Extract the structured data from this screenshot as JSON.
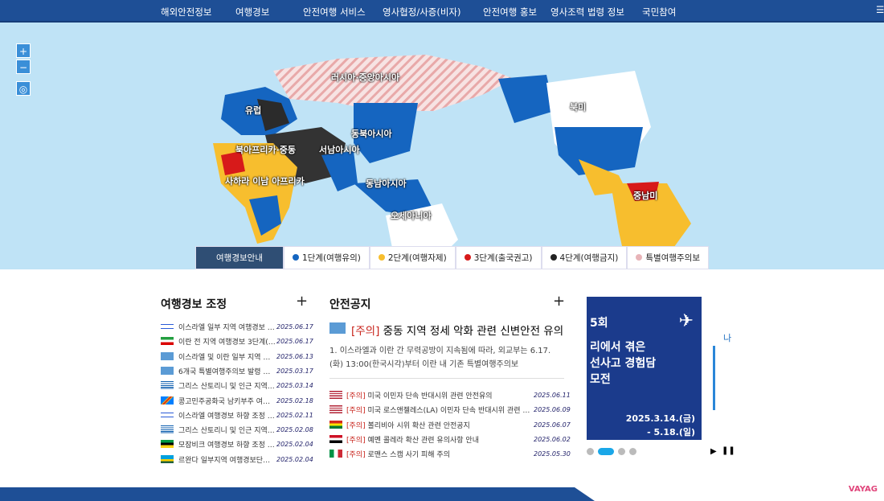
{
  "nav": {
    "items": [
      "해외안전정보",
      "여행경보",
      "안전여행 서비스",
      "영사협정/사증(비자)",
      "안전여행 홍보",
      "영사조력 법령 정보",
      "국민참여"
    ],
    "menu_icon": "hamburger-icon"
  },
  "map": {
    "zoom_in": "+",
    "zoom_out": "−",
    "reset_icon": "target-icon",
    "regions": [
      "러시아·중앙아시아",
      "유럽",
      "북미",
      "동북아시아",
      "북아프리카·중동",
      "서남아시아",
      "사하라 이남 아프리카",
      "동남아시아",
      "중남미",
      "오세아니아"
    ]
  },
  "legend": {
    "title": "여행경보안내",
    "levels": [
      {
        "label": "1단계(여행유의)",
        "color": "#1565c0"
      },
      {
        "label": "2단계(여행자제)",
        "color": "#f7be2e"
      },
      {
        "label": "3단계(출국권고)",
        "color": "#d71a1a"
      },
      {
        "label": "4단계(여행금지)",
        "color": "#222222"
      },
      {
        "label": "특별여행주의보",
        "color": "#e8b4b8"
      }
    ]
  },
  "alerts": {
    "title": "여행경보 조정",
    "more": "+",
    "items": [
      {
        "text": "이스라엘 일부 지역 여행경보 …",
        "date": "2025.06.17",
        "flag": "israel"
      },
      {
        "text": "이란 전 지역 여행경보 3단계(…",
        "date": "2025.06.17",
        "flag": "iran"
      },
      {
        "text": "이스라엘 및 이란 일부 지역 …",
        "date": "2025.06.13",
        "flag": "un"
      },
      {
        "text": "6개국 특별여행주의보 발령 …",
        "date": "2025.03.17",
        "flag": "un"
      },
      {
        "text": "그리스 산토리니 및 인근 지역…",
        "date": "2025.03.14",
        "flag": "greece"
      },
      {
        "text": "콩고민주공화국 남키부주 여…",
        "date": "2025.02.18",
        "flag": "drc"
      },
      {
        "text": "이스라엘 여행경보 하향 조정 …",
        "date": "2025.02.11",
        "flag": "israel"
      },
      {
        "text": "그리스 산토리니 및 인근 지역…",
        "date": "2025.02.08",
        "flag": "greece"
      },
      {
        "text": "모잠비크 여행경보 하향 조정 …",
        "date": "2025.02.04",
        "flag": "mozambique"
      },
      {
        "text": "르완다 일부지역 여행경보단…",
        "date": "2025.02.04",
        "flag": "rwanda"
      }
    ]
  },
  "notices": {
    "title": "안전공지",
    "more": "+",
    "featured": {
      "tag": "[주의]",
      "title": "중동 지역 정세 악화 관련 신변안전 유의",
      "body": "1. 이스라엘과 이란 간 무력공방이 지속됨에 따라, 외교부는 6.17.(화) 13:00(한국시각)부터 이란 내 기존 특별여행주의보"
    },
    "items": [
      {
        "tag": "[주의]",
        "text": "미국 이민자 단속 반대시위 관련 안전유의",
        "date": "2025.06.11",
        "flag": "usa"
      },
      {
        "tag": "[주의]",
        "text": "미국 로스앤젤레스(LA) 이민자 단속 반대시위 관련 …",
        "date": "2025.06.09",
        "flag": "usa"
      },
      {
        "tag": "[주의]",
        "text": "볼리비아 시위 확산 관련 안전공지",
        "date": "2025.06.07",
        "flag": "bolivia"
      },
      {
        "tag": "[주의]",
        "text": "예멘 콜레라 확산 관련 유의사항 안내",
        "date": "2025.06.02",
        "flag": "yemen"
      },
      {
        "tag": "[주의]",
        "text": "로맨스 스캠 사기 피해 주의",
        "date": "2025.05.30",
        "flag": "italy"
      }
    ]
  },
  "banner": {
    "lines": [
      "5회",
      "리에서 겪은",
      "선사고 경험담",
      "모전"
    ],
    "dates": [
      "2025.3.14.(금)",
      "- 5.18.(일)"
    ],
    "next_text": "나",
    "slide_current": 2,
    "slide_count": 4
  },
  "watermark": "VAYAG"
}
